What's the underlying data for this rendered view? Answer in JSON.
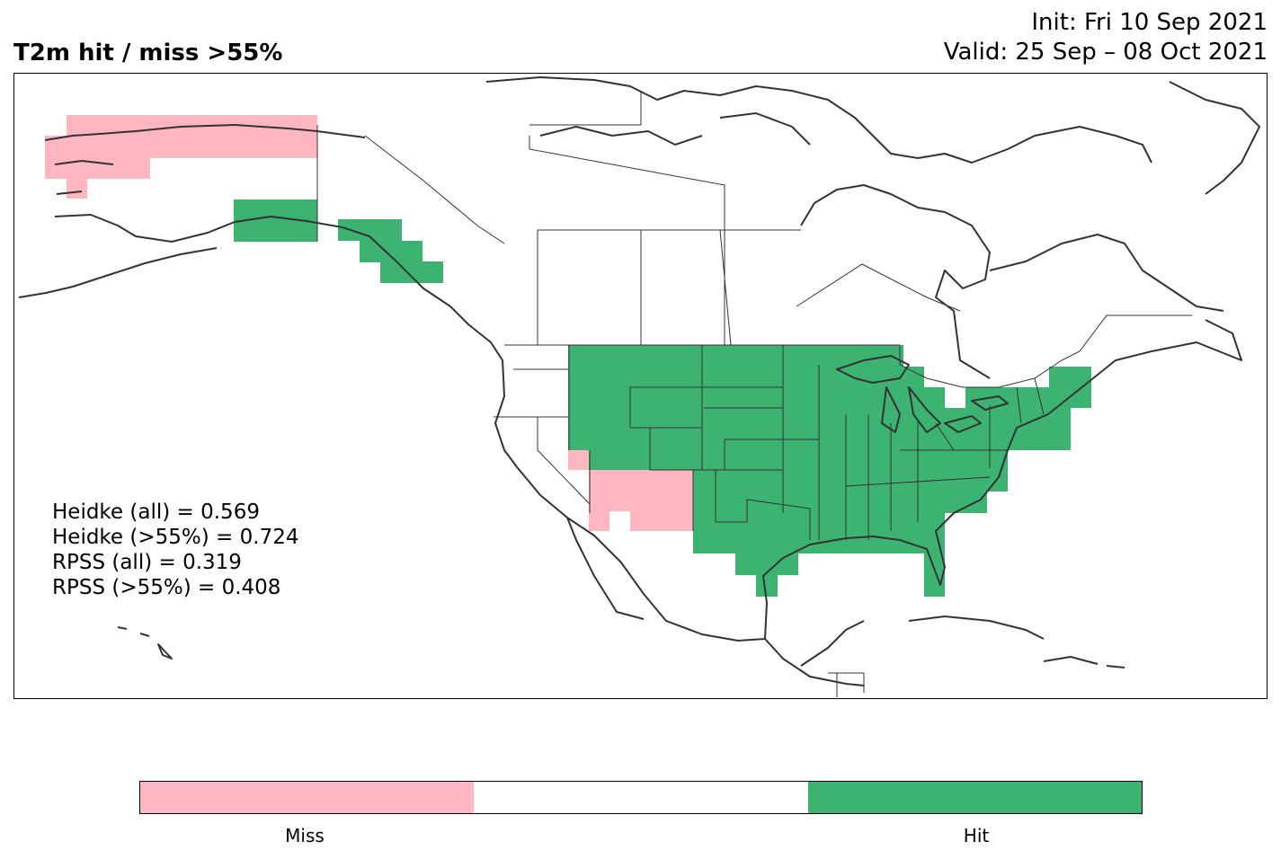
{
  "header": {
    "title": "T2m hit / miss  >55%",
    "init": "Init: Fri 10 Sep 2021",
    "valid": "Valid: 25 Sep – 08 Oct 2021"
  },
  "stats": [
    "Heidke (all) = 0.569",
    "Heidke (>55%) = 0.724",
    "RPSS (all) = 0.319",
    "RPSS (>55%) = 0.408"
  ],
  "colorbar": {
    "colors": [
      "#ffb6c1",
      "#ffffff",
      "#3cb371"
    ],
    "labels": [
      "Miss",
      "Hit"
    ]
  },
  "legend_colors": {
    "miss": "#ffb6c1",
    "hit": "#3cb371",
    "coastline": "#333333"
  }
}
